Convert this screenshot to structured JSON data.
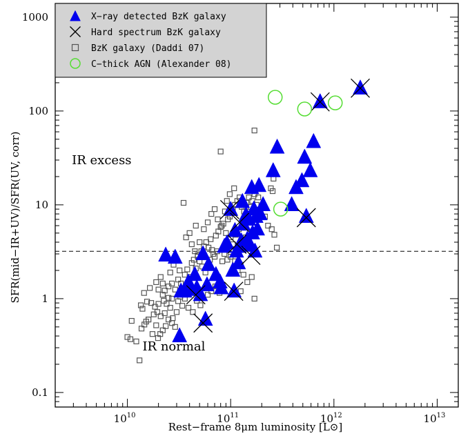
{
  "chart_data": {
    "type": "scatter",
    "xlabel": "Rest−frame 8μm luminosity [L⊙]",
    "ylabel": "SFR(mid−IR+UV)/SFR(UV, corr)",
    "x_scale": "log",
    "y_scale": "log",
    "xlim": [
      2000000000.0,
      16000000000000.0
    ],
    "ylim": [
      0.07,
      1400
    ],
    "x_ticks": [
      {
        "value": 10000000000.0,
        "label": "10",
        "exp": "10"
      },
      {
        "value": 100000000000.0,
        "label": "10",
        "exp": "11"
      },
      {
        "value": 1000000000000.0,
        "label": "10",
        "exp": "12"
      },
      {
        "value": 10000000000000.0,
        "label": "10",
        "exp": "13"
      }
    ],
    "y_ticks": [
      {
        "value": 0.1,
        "label": "0.1"
      },
      {
        "value": 1,
        "label": "1"
      },
      {
        "value": 10,
        "label": "10"
      },
      {
        "value": 100,
        "label": "100"
      },
      {
        "value": 1000,
        "label": "1000"
      }
    ],
    "reference_line": {
      "y": 3.2,
      "style": "dashed"
    },
    "annotations": [
      {
        "text": "IR excess",
        "x": 2900000000.0,
        "y": 27
      },
      {
        "text": "IR normal",
        "x": 14000000000.0,
        "y": 0.28
      }
    ],
    "legend": {
      "position": "top-left",
      "entries": [
        {
          "label": "X−ray detected BzK galaxy",
          "marker": "triangle",
          "color": "#0000ee"
        },
        {
          "label": "Hard spectrum BzK galaxy",
          "marker": "cross",
          "color": "#000000"
        },
        {
          "label": "BzK galaxy (Daddi 07)",
          "marker": "square",
          "color": "#555555"
        },
        {
          "label": "C−thick AGN (Alexander 08)",
          "marker": "circle",
          "color": "#55dd33"
        }
      ]
    },
    "series": [
      {
        "name": "X−ray detected BzK galaxy",
        "marker": "triangle",
        "color": "#0000ee",
        "points": [
          [
            23500000000.0,
            2.9
          ],
          [
            29000000000.0,
            2.75
          ],
          [
            32000000000.0,
            0.4
          ],
          [
            33000000000.0,
            1.2
          ],
          [
            36000000000.0,
            1.2
          ],
          [
            39000000000.0,
            1.5
          ],
          [
            42000000000.0,
            1.25
          ],
          [
            45000000000.0,
            1.8
          ],
          [
            47000000000.0,
            1.3
          ],
          [
            51000000000.0,
            1.1
          ],
          [
            54000000000.0,
            3.0
          ],
          [
            57000000000.0,
            0.6
          ],
          [
            59000000000.0,
            1.4
          ],
          [
            61000000000.0,
            2.3
          ],
          [
            72000000000.0,
            1.8
          ],
          [
            79000000000.0,
            1.5
          ],
          [
            81000000000.0,
            1.3
          ],
          [
            87000000000.0,
            3.6
          ],
          [
            92000000000.0,
            3.9
          ],
          [
            100000000000.0,
            8.9
          ],
          [
            105000000000.0,
            2.0
          ],
          [
            108000000000.0,
            1.2
          ],
          [
            110000000000.0,
            5.3
          ],
          [
            114000000000.0,
            3.2
          ],
          [
            119000000000.0,
            2.4
          ],
          [
            121000000000.0,
            3.6
          ],
          [
            127000000000.0,
            4.1
          ],
          [
            130000000000.0,
            10.8
          ],
          [
            133000000000.0,
            6.2
          ],
          [
            141000000000.0,
            7.8
          ],
          [
            145000000000.0,
            4.3
          ],
          [
            150000000000.0,
            7.0
          ],
          [
            153000000000.0,
            3.7
          ],
          [
            160000000000.0,
            15.2
          ],
          [
            163000000000.0,
            5.0
          ],
          [
            168000000000.0,
            9.0
          ],
          [
            172000000000.0,
            3.2
          ],
          [
            176000000000.0,
            7.5
          ],
          [
            182000000000.0,
            5.5
          ],
          [
            188000000000.0,
            16.0
          ],
          [
            193000000000.0,
            8.0
          ],
          [
            206000000000.0,
            10.0
          ],
          [
            258000000000.0,
            23.0
          ],
          [
            282000000000.0,
            41.0
          ],
          [
            390000000000.0,
            10.0
          ],
          [
            430000000000.0,
            15.2
          ],
          [
            490000000000.0,
            18.0
          ],
          [
            520000000000.0,
            32.0
          ],
          [
            540000000000.0,
            7.5
          ],
          [
            590000000000.0,
            23.0
          ],
          [
            635000000000.0,
            47.0
          ],
          [
            735000000000.0,
            125.0
          ],
          [
            1800000000000.0,
            175.0
          ]
        ]
      },
      {
        "name": "Hard spectrum BzK galaxy",
        "marker": "cross",
        "color": "#000000",
        "points": [
          [
            46000000000.0,
            1.1
          ],
          [
            54000000000.0,
            0.55
          ],
          [
            98000000000.0,
            8.9
          ],
          [
            107000000000.0,
            1.2
          ],
          [
            115000000000.0,
            3.8
          ],
          [
            122000000000.0,
            6.5
          ],
          [
            157000000000.0,
            2.9
          ],
          [
            540000000000.0,
            7.3
          ],
          [
            735000000000.0,
            125.0
          ],
          [
            1800000000000.0,
            175.0
          ]
        ]
      },
      {
        "name": "BzK galaxy (Daddi 07)",
        "marker": "square",
        "color": "#555555",
        "points": [
          [
            10000000000.0,
            0.39
          ],
          [
            10700000000.0,
            0.37
          ],
          [
            12200000000.0,
            0.35
          ],
          [
            13100000000.0,
            0.22
          ],
          [
            13700000000.0,
            0.48
          ],
          [
            11000000000.0,
            0.58
          ],
          [
            14600000000.0,
            0.53
          ],
          [
            16000000000.0,
            0.6
          ],
          [
            17500000000.0,
            0.42
          ],
          [
            19000000000.0,
            0.52
          ],
          [
            19800000000.0,
            0.38
          ],
          [
            22000000000.0,
            0.46
          ],
          [
            20800000000.0,
            0.42
          ],
          [
            15200000000.0,
            0.57
          ],
          [
            23500000000.0,
            0.51
          ],
          [
            13500000000.0,
            0.85
          ],
          [
            14000000000.0,
            0.78
          ],
          [
            15500000000.0,
            0.93
          ],
          [
            17000000000.0,
            0.9
          ],
          [
            18500000000.0,
            0.82
          ],
          [
            19500000000.0,
            0.72
          ],
          [
            21000000000.0,
            0.65
          ],
          [
            22500000000.0,
            0.95
          ],
          [
            24000000000.0,
            0.88
          ],
          [
            25000000000.0,
            1.02
          ],
          [
            26000000000.0,
            0.8
          ],
          [
            27500000000.0,
            0.62
          ],
          [
            29000000000.0,
            0.5
          ],
          [
            30000000000.0,
            0.72
          ],
          [
            31000000000.0,
            0.94
          ],
          [
            32500000000.0,
            1.05
          ],
          [
            34000000000.0,
            0.84
          ],
          [
            16000000000.0,
            0.6
          ],
          [
            18000000000.0,
            0.68
          ],
          [
            20000000000.0,
            0.88
          ],
          [
            22000000000.0,
            1.1
          ],
          [
            23000000000.0,
            0.7
          ],
          [
            25000000000.0,
            0.6
          ],
          [
            27000000000.0,
            0.55
          ],
          [
            23000000000.0,
            1.22
          ],
          [
            25000000000.0,
            1.35
          ],
          [
            27000000000.0,
            1.45
          ],
          [
            29000000000.0,
            1.25
          ],
          [
            31000000000.0,
            1.6
          ],
          [
            33000000000.0,
            1.45
          ],
          [
            35000000000.0,
            1.15
          ],
          [
            36000000000.0,
            1.8
          ],
          [
            38000000000.0,
            2.05
          ],
          [
            40000000000.0,
            1.7
          ],
          [
            42000000000.0,
            2.4
          ],
          [
            44000000000.0,
            2.6
          ],
          [
            46000000000.0,
            2.1
          ],
          [
            48000000000.0,
            2.9
          ],
          [
            50000000000.0,
            2.5
          ],
          [
            52000000000.0,
            3.2
          ],
          [
            55000000000.0,
            3.6
          ],
          [
            58000000000.0,
            4.0
          ],
          [
            61000000000.0,
            3.5
          ],
          [
            64000000000.0,
            4.3
          ],
          [
            68000000000.0,
            3.0
          ],
          [
            72000000000.0,
            4.7
          ],
          [
            76000000000.0,
            5.2
          ],
          [
            80000000000.0,
            5.8
          ],
          [
            85000000000.0,
            6.3
          ],
          [
            90000000000.0,
            5.0
          ],
          [
            94000000000.0,
            7.0
          ],
          [
            98000000000.0,
            7.5
          ],
          [
            100000000000.0,
            8.2
          ],
          [
            105000000000.0,
            9.0
          ],
          [
            110000000000.0,
            10.0
          ],
          [
            116000000000.0,
            11.0
          ],
          [
            122000000000.0,
            12.0
          ],
          [
            128000000000.0,
            9.5
          ],
          [
            135000000000.0,
            8.5
          ],
          [
            142000000000.0,
            10.5
          ],
          [
            150000000000.0,
            12.0
          ],
          [
            156000000000.0,
            9.5
          ],
          [
            162000000000.0,
            11.0
          ],
          [
            170000000000.0,
            13.0
          ],
          [
            178000000000.0,
            10.0
          ],
          [
            185000000000.0,
            12.0
          ],
          [
            195000000000.0,
            8.5
          ],
          [
            205000000000.0,
            9.5
          ],
          [
            215000000000.0,
            7.5
          ],
          [
            230000000000.0,
            6.0
          ],
          [
            250000000000.0,
            5.5
          ],
          [
            265000000000.0,
            4.8
          ],
          [
            280000000000.0,
            3.5
          ],
          [
            245000000000.0,
            15.0
          ],
          [
            260000000000.0,
            19.0
          ],
          [
            255000000000.0,
            14.0
          ],
          [
            170000000000.0,
            62.0
          ],
          [
            80000000000.0,
            37.0
          ],
          [
            55000000000.0,
            5.5
          ],
          [
            60000000000.0,
            6.5
          ],
          [
            65000000000.0,
            8.0
          ],
          [
            70000000000.0,
            9.0
          ],
          [
            75000000000.0,
            7.0
          ],
          [
            82000000000.0,
            6.0
          ],
          [
            88000000000.0,
            8.5
          ],
          [
            92000000000.0,
            11.0
          ],
          [
            98000000000.0,
            13.0
          ],
          [
            108000000000.0,
            15.0
          ],
          [
            100000000000.0,
            4.5
          ],
          [
            105000000000.0,
            3.8
          ],
          [
            112000000000.0,
            4.8
          ],
          [
            120000000000.0,
            5.5
          ],
          [
            130000000000.0,
            6.2
          ],
          [
            140000000000.0,
            4.5
          ],
          [
            150000000000.0,
            3.9
          ],
          [
            160000000000.0,
            5.0
          ],
          [
            170000000000.0,
            6.5
          ],
          [
            180000000000.0,
            7.8
          ],
          [
            50000000000.0,
            4.0
          ],
          [
            45000000000.0,
            3.2
          ],
          [
            42000000000.0,
            3.8
          ],
          [
            40000000000.0,
            5.0
          ],
          [
            46000000000.0,
            6.0
          ],
          [
            37000000000.0,
            4.5
          ],
          [
            35000000000.0,
            10.5
          ],
          [
            48000000000.0,
            2.8
          ],
          [
            53000000000.0,
            2.2
          ],
          [
            57000000000.0,
            1.9
          ],
          [
            63000000000.0,
            2.6
          ],
          [
            66000000000.0,
            3.3
          ],
          [
            70000000000.0,
            2.8
          ],
          [
            74000000000.0,
            3.2
          ],
          [
            83000000000.0,
            2.5
          ],
          [
            87000000000.0,
            3.0
          ],
          [
            93000000000.0,
            2.6
          ],
          [
            100000000000.0,
            2.8
          ],
          [
            110000000000.0,
            2.5
          ],
          [
            117000000000.0,
            2.0
          ],
          [
            125000000000.0,
            2.3
          ],
          [
            133000000000.0,
            1.8
          ],
          [
            145000000000.0,
            1.5
          ],
          [
            160000000000.0,
            1.7
          ],
          [
            170000000000.0,
            1.0
          ],
          [
            125000000000.0,
            1.2
          ],
          [
            32000000000.0,
            2.0
          ],
          [
            28000000000.0,
            2.3
          ],
          [
            26000000000.0,
            1.9
          ],
          [
            21000000000.0,
            1.7
          ],
          [
            19000000000.0,
            1.5
          ],
          [
            16500000000.0,
            1.3
          ],
          [
            14500000000.0,
            1.15
          ],
          [
            20000000000.0,
            1.25
          ],
          [
            22000000000.0,
            1.45
          ],
          [
            60000000000.0,
            1.1
          ],
          [
            65000000000.0,
            1.2
          ],
          [
            71000000000.0,
            1.35
          ],
          [
            78000000000.0,
            1.15
          ],
          [
            36000000000.0,
            1.0
          ],
          [
            39000000000.0,
            0.8
          ],
          [
            43000000000.0,
            0.72
          ],
          [
            47000000000.0,
            0.95
          ],
          [
            51000000000.0,
            0.85
          ],
          [
            27000000000.0,
            1.0
          ]
        ]
      },
      {
        "name": "C−thick AGN (Alexander 08)",
        "marker": "circle",
        "color": "#55dd33",
        "points": [
          [
            270000000000.0,
            140.0
          ],
          [
            520000000000.0,
            105.0
          ],
          [
            1030000000000.0,
            122.0
          ],
          [
            305000000000.0,
            9.0
          ]
        ]
      }
    ]
  }
}
